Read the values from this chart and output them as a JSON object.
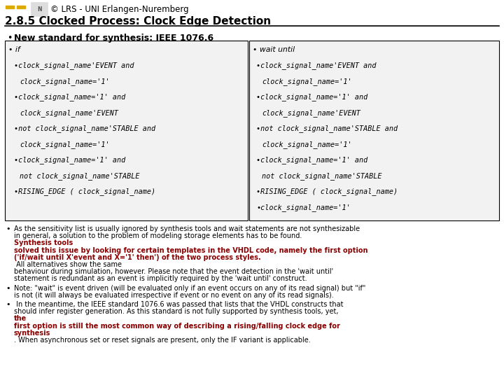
{
  "bg_color": "#ffffff",
  "header_line1": "© LRS - UNI Erlangen-Nuremberg",
  "header_line2": "2.8.5 Clocked Process: Clock Edge Detection",
  "bullet0": "New standard for synthesis: IEEE 1076.6",
  "left_box_lines": [
    [
      "• if",
      false
    ],
    [
      "•clock_signal_name'EVENT and",
      true
    ],
    [
      "  clock_signal_name='1'",
      true
    ],
    [
      "•clock_signal_name='1' and",
      true
    ],
    [
      "  clock_signal_name'EVENT",
      true
    ],
    [
      "•not clock_signal_name'STABLE and",
      true
    ],
    [
      "  clock_signal_name='1'",
      true
    ],
    [
      "•clock_signal_name='1' and",
      true
    ],
    [
      "  not clock_signal_name'STABLE",
      true
    ],
    [
      "•RISING_EDGE ( clock_signal_name)",
      true
    ]
  ],
  "right_box_lines": [
    [
      "• wait until",
      false
    ],
    [
      "•clock_signal_name'EVENT and",
      true
    ],
    [
      "  clock_signal_name='1'",
      true
    ],
    [
      "•clock_signal_name='1' and",
      true
    ],
    [
      "  clock_signal_name'EVENT",
      true
    ],
    [
      "•not clock_signal_name'STABLE and",
      true
    ],
    [
      "  clock_signal_name='1'",
      true
    ],
    [
      "•clock_signal_name='1' and",
      true
    ],
    [
      "  not clock_signal_name'STABLE",
      true
    ],
    [
      "•RISING_EDGE ( clock_signal_name)",
      true
    ],
    [
      "•clock_signal_name='1'",
      true
    ]
  ],
  "para1": [
    [
      "As the sensitivity list is usually ignored by synthesis tools and wait statements are not synthesizable",
      "black",
      false
    ],
    [
      "in general, a solution to the problem of modeling storage elements has to be found. ",
      "black",
      false
    ],
    [
      "Synthesis tools",
      "red",
      true
    ],
    [
      "solved this issue by looking for certain templates in the VHDL code, namely the first option",
      "red",
      true
    ],
    [
      "('if/wait until X'event and X='1' then') of the two process styles.",
      "red",
      true
    ],
    [
      " All alternatives show the same",
      "black",
      false
    ],
    [
      "behaviour during simulation, however. Please note that the event detection in the 'wait until'",
      "black",
      false
    ],
    [
      "statement is redundant as an event is implicitly required by the 'wait until' construct.",
      "black",
      false
    ]
  ],
  "para2": [
    [
      "Note: \"wait\" is event driven (will be evaluated only if an event occurs on any of its read signal) but \"if\"",
      "black",
      false
    ],
    [
      "is not (it will always be evaluated irrespective if event or no event on any of its read signals).",
      "black",
      false
    ]
  ],
  "para3": [
    [
      " In the meantime, the IEEE standard 1076.6 was passed that lists that the VHDL constructs that",
      "black",
      false
    ],
    [
      "should infer register generation. As this standard is not fully supported by synthesis tools, yet, ",
      "black",
      false
    ],
    [
      "the",
      "red",
      true
    ],
    [
      "first option is still the most common way of describing a rising/falling clock edge for",
      "red",
      true
    ],
    [
      "synthesis",
      "red",
      true
    ],
    [
      ". When asynchronous set or reset signals are present, only the IF variant is applicable.",
      "black",
      false
    ]
  ],
  "red_color": "#8B0000",
  "black_color": "#000000"
}
